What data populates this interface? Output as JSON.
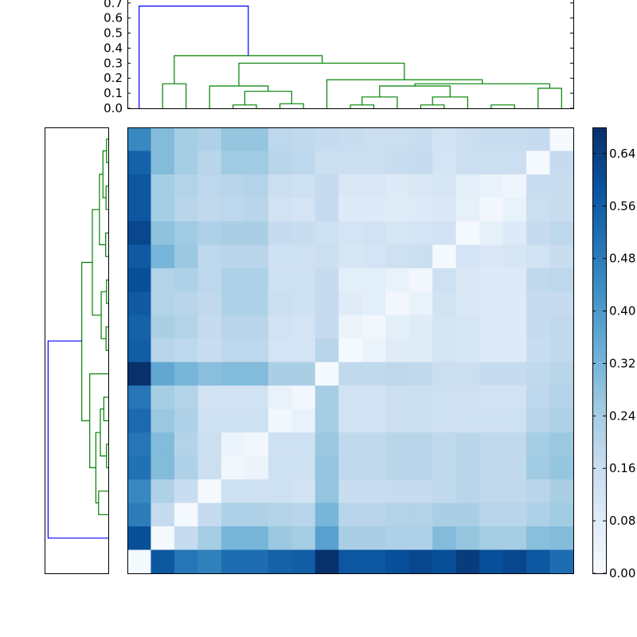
{
  "chart_data": {
    "type": "heatmap",
    "title": "",
    "xlabel": "",
    "ylabel": "",
    "n": 19,
    "colormap": [
      "#f7fbff",
      "#deebf7",
      "#c6dbef",
      "#9ecae1",
      "#6baed6",
      "#4292c6",
      "#2171b5",
      "#08519c",
      "#08306b"
    ],
    "vmin": 0.0,
    "vmax": 0.68,
    "colorbar": {
      "ticks": [
        0.0,
        0.08,
        0.16,
        0.24,
        0.32,
        0.4,
        0.48,
        0.56,
        0.64
      ],
      "tick_labels": [
        "0.00",
        "0.08",
        "0.16",
        "0.24",
        "0.32",
        "0.40",
        "0.48",
        "0.56",
        "0.64"
      ]
    },
    "dendrogram_top": {
      "ylim": [
        0,
        0.72
      ],
      "ticks": [
        0.0,
        0.1,
        0.2,
        0.3,
        0.4,
        0.5,
        0.6,
        0.7
      ],
      "tick_labels": [
        "0.0",
        "0.1",
        "0.2",
        "0.3",
        "0.4",
        "0.5",
        "0.6",
        "0.7"
      ],
      "links": [
        {
          "i": 15.5,
          "j": 16.5,
          "h": 0.022,
          "ci": 0,
          "cj": 0,
          "color": "green"
        },
        {
          "i": 12.5,
          "j": 13.5,
          "h": 0.022,
          "ci": 0,
          "cj": 0,
          "color": "green"
        },
        {
          "i": 13.0,
          "j": 14.5,
          "h": 0.075,
          "ci": 0.022,
          "cj": 0,
          "color": "green"
        },
        {
          "i": 9.5,
          "j": 10.5,
          "h": 0.022,
          "ci": 0,
          "cj": 0,
          "color": "green"
        },
        {
          "i": 10.0,
          "j": 11.5,
          "h": 0.075,
          "ci": 0.022,
          "cj": 0,
          "color": "green"
        },
        {
          "i": 10.75,
          "j": 13.75,
          "h": 0.148,
          "ci": 0.075,
          "cj": 0.075,
          "color": "green"
        },
        {
          "i": 17.5,
          "j": 18.5,
          "h": 0.133,
          "ci": 0,
          "cj": 0,
          "color": "green"
        },
        {
          "i": 12.25,
          "j": 18.0,
          "h": 0.163,
          "ci": 0.148,
          "cj": 0.133,
          "color": "green"
        },
        {
          "i": 8.5,
          "j": 15.125,
          "h": 0.19,
          "ci": 0,
          "cj": 0.163,
          "color": "green"
        },
        {
          "i": 4.5,
          "j": 5.5,
          "h": 0.022,
          "ci": 0,
          "cj": 0,
          "color": "green"
        },
        {
          "i": 6.5,
          "j": 7.5,
          "h": 0.03,
          "ci": 0,
          "cj": 0,
          "color": "green"
        },
        {
          "i": 5.0,
          "j": 7.0,
          "h": 0.113,
          "ci": 0.022,
          "cj": 0.03,
          "color": "green"
        },
        {
          "i": 3.5,
          "j": 6.0,
          "h": 0.148,
          "ci": 0,
          "cj": 0.113,
          "color": "green"
        },
        {
          "i": 4.75,
          "j": 11.8,
          "h": 0.3,
          "ci": 0.148,
          "cj": 0.19,
          "color": "green"
        },
        {
          "i": 1.5,
          "j": 2.5,
          "h": 0.163,
          "ci": 0,
          "cj": 0,
          "color": "green"
        },
        {
          "i": 2.0,
          "j": 8.3,
          "h": 0.35,
          "ci": 0.163,
          "cj": 0.3,
          "color": "green"
        },
        {
          "i": 0.5,
          "j": 5.15,
          "h": 0.68,
          "ci": 0,
          "cj": 0.35,
          "color": "blue"
        }
      ]
    },
    "dendrogram_left": {
      "note_order": "same tree, leaves ordered top-to-bottom, root on the right",
      "links": [
        {
          "a": 0.5,
          "b": 1.5,
          "h": 0.02,
          "ca": 0,
          "cb": 0,
          "color": "green"
        },
        {
          "a": 2.5,
          "b": 3.5,
          "h": 0.025,
          "ca": 0,
          "cb": 0,
          "color": "green"
        },
        {
          "a": 1.0,
          "b": 3.0,
          "h": 0.06,
          "ca": 0.02,
          "cb": 0.025,
          "color": "green"
        },
        {
          "a": 4.5,
          "b": 5.5,
          "h": 0.03,
          "ca": 0,
          "cb": 0,
          "color": "green"
        },
        {
          "a": 2.0,
          "b": 5.0,
          "h": 0.1,
          "ca": 0.06,
          "cb": 0.03,
          "color": "green"
        },
        {
          "a": 6.5,
          "b": 7.5,
          "h": 0.02,
          "ca": 0,
          "cb": 0,
          "color": "green"
        },
        {
          "a": 8.5,
          "b": 9.5,
          "h": 0.025,
          "ca": 0,
          "cb": 0,
          "color": "green"
        },
        {
          "a": 7.0,
          "b": 9.0,
          "h": 0.08,
          "ca": 0.02,
          "cb": 0.025,
          "color": "green"
        },
        {
          "a": 3.5,
          "b": 8.0,
          "h": 0.18,
          "ca": 0.1,
          "cb": 0.08,
          "color": "green"
        },
        {
          "a": 11.5,
          "b": 12.5,
          "h": 0.05,
          "ca": 0,
          "cb": 0,
          "color": "green"
        },
        {
          "a": 13.5,
          "b": 14.5,
          "h": 0.02,
          "ca": 0,
          "cb": 0,
          "color": "green"
        },
        {
          "a": 12.0,
          "b": 14.0,
          "h": 0.09,
          "ca": 0.05,
          "cb": 0.02,
          "color": "green"
        },
        {
          "a": 15.5,
          "b": 16.5,
          "h": 0.11,
          "ca": 0,
          "cb": 0,
          "color": "green"
        },
        {
          "a": 13.0,
          "b": 16.0,
          "h": 0.14,
          "ca": 0.09,
          "cb": 0.11,
          "color": "green"
        },
        {
          "a": 10.5,
          "b": 14.5,
          "h": 0.21,
          "ca": 0,
          "cb": 0.14,
          "color": "green"
        },
        {
          "a": 5.75,
          "b": 12.5,
          "h": 0.3,
          "ca": 0.18,
          "cb": 0.21,
          "color": "green"
        },
        {
          "a": 17.5,
          "b": 9.1,
          "h": 0.68,
          "ca": 0,
          "cb": 0.3,
          "color": "blue"
        }
      ]
    },
    "matrix": [
      [
        0.45,
        0.3,
        0.24,
        0.22,
        0.27,
        0.27,
        0.19,
        0.18,
        0.17,
        0.16,
        0.15,
        0.15,
        0.16,
        0.13,
        0.15,
        0.16,
        0.16,
        0.17,
        0.01
      ],
      [
        0.55,
        0.3,
        0.24,
        0.2,
        0.25,
        0.25,
        0.2,
        0.19,
        0.15,
        0.15,
        0.15,
        0.16,
        0.17,
        0.12,
        0.15,
        0.15,
        0.15,
        0.01,
        0.17
      ],
      [
        0.58,
        0.24,
        0.21,
        0.19,
        0.2,
        0.21,
        0.15,
        0.14,
        0.17,
        0.1,
        0.1,
        0.09,
        0.1,
        0.11,
        0.07,
        0.05,
        0.03,
        0.16,
        0.16
      ],
      [
        0.58,
        0.24,
        0.2,
        0.18,
        0.19,
        0.2,
        0.13,
        0.12,
        0.17,
        0.09,
        0.09,
        0.08,
        0.09,
        0.1,
        0.06,
        0.02,
        0.05,
        0.15,
        0.16
      ],
      [
        0.62,
        0.28,
        0.25,
        0.22,
        0.23,
        0.23,
        0.17,
        0.16,
        0.14,
        0.12,
        0.13,
        0.11,
        0.12,
        0.13,
        0.01,
        0.06,
        0.09,
        0.17,
        0.19
      ],
      [
        0.57,
        0.32,
        0.26,
        0.19,
        0.2,
        0.2,
        0.14,
        0.14,
        0.15,
        0.11,
        0.12,
        0.14,
        0.15,
        0.01,
        0.12,
        0.1,
        0.11,
        0.13,
        0.16
      ],
      [
        0.6,
        0.21,
        0.22,
        0.19,
        0.22,
        0.22,
        0.14,
        0.14,
        0.17,
        0.07,
        0.07,
        0.05,
        0.02,
        0.14,
        0.1,
        0.09,
        0.09,
        0.18,
        0.19
      ],
      [
        0.57,
        0.21,
        0.2,
        0.18,
        0.22,
        0.22,
        0.15,
        0.14,
        0.17,
        0.08,
        0.07,
        0.02,
        0.05,
        0.13,
        0.1,
        0.09,
        0.09,
        0.17,
        0.17
      ],
      [
        0.55,
        0.23,
        0.21,
        0.17,
        0.2,
        0.2,
        0.13,
        0.12,
        0.17,
        0.04,
        0.02,
        0.07,
        0.08,
        0.12,
        0.11,
        0.09,
        0.09,
        0.17,
        0.18
      ],
      [
        0.56,
        0.2,
        0.19,
        0.16,
        0.19,
        0.19,
        0.12,
        0.12,
        0.2,
        0.01,
        0.04,
        0.08,
        0.08,
        0.12,
        0.11,
        0.09,
        0.09,
        0.16,
        0.18
      ],
      [
        0.68,
        0.36,
        0.32,
        0.29,
        0.3,
        0.3,
        0.23,
        0.23,
        0.01,
        0.18,
        0.18,
        0.19,
        0.18,
        0.15,
        0.15,
        0.17,
        0.17,
        0.18,
        0.2
      ],
      [
        0.5,
        0.24,
        0.21,
        0.13,
        0.13,
        0.13,
        0.05,
        0.02,
        0.24,
        0.13,
        0.13,
        0.15,
        0.15,
        0.14,
        0.14,
        0.13,
        0.13,
        0.19,
        0.21
      ],
      [
        0.53,
        0.26,
        0.22,
        0.14,
        0.14,
        0.14,
        0.02,
        0.05,
        0.24,
        0.13,
        0.13,
        0.15,
        0.15,
        0.14,
        0.14,
        0.14,
        0.14,
        0.2,
        0.22
      ],
      [
        0.5,
        0.3,
        0.21,
        0.15,
        0.04,
        0.02,
        0.14,
        0.14,
        0.26,
        0.18,
        0.18,
        0.2,
        0.2,
        0.18,
        0.2,
        0.18,
        0.18,
        0.24,
        0.26
      ],
      [
        0.51,
        0.3,
        0.22,
        0.15,
        0.02,
        0.04,
        0.14,
        0.14,
        0.27,
        0.18,
        0.18,
        0.2,
        0.2,
        0.18,
        0.2,
        0.18,
        0.18,
        0.25,
        0.27
      ],
      [
        0.45,
        0.22,
        0.16,
        0.01,
        0.14,
        0.14,
        0.14,
        0.13,
        0.27,
        0.16,
        0.16,
        0.17,
        0.17,
        0.18,
        0.2,
        0.18,
        0.18,
        0.2,
        0.23
      ],
      [
        0.48,
        0.17,
        0.01,
        0.17,
        0.22,
        0.22,
        0.21,
        0.2,
        0.32,
        0.2,
        0.2,
        0.21,
        0.21,
        0.23,
        0.23,
        0.2,
        0.2,
        0.22,
        0.25
      ],
      [
        0.6,
        0.01,
        0.17,
        0.24,
        0.32,
        0.32,
        0.26,
        0.24,
        0.38,
        0.23,
        0.23,
        0.22,
        0.22,
        0.3,
        0.27,
        0.24,
        0.24,
        0.29,
        0.3
      ],
      [
        0.01,
        0.58,
        0.5,
        0.47,
        0.52,
        0.52,
        0.55,
        0.56,
        0.68,
        0.58,
        0.58,
        0.6,
        0.62,
        0.6,
        0.65,
        0.6,
        0.62,
        0.58,
        0.52
      ]
    ]
  }
}
